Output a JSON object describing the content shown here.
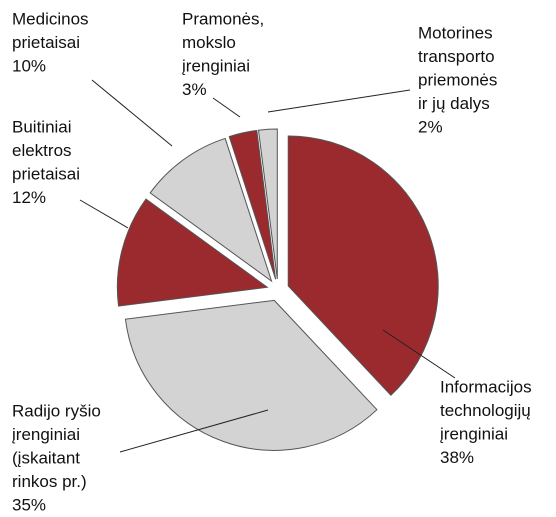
{
  "chart_data": {
    "type": "pie",
    "categories": [
      [
        "Informacijos",
        "technologijų",
        "įrenginiai"
      ],
      [
        "Radijo ryšio",
        "įrenginiai",
        "(įskaitant",
        "rinkos pr.)"
      ],
      [
        "Buitiniai",
        "elektros",
        "prietaisai"
      ],
      [
        "Medicinos",
        "prietaisai"
      ],
      [
        "Pramonės,",
        "mokslo",
        "įrenginiai"
      ],
      [
        "Motorines",
        "transporto",
        "priemonės",
        "ir jų dalys"
      ]
    ],
    "values": [
      38,
      35,
      12,
      10,
      3,
      2
    ],
    "value_labels": [
      "38%",
      "35%",
      "12%",
      "10%",
      "3%",
      "2%"
    ],
    "colors": [
      "#9b2a2e",
      "#d3d3d3",
      "#9b2a2e",
      "#d3d3d3",
      "#9b2a2e",
      "#d3d3d3"
    ]
  }
}
